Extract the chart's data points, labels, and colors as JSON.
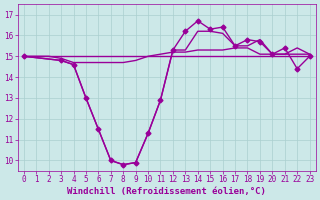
{
  "xlabel": "Windchill (Refroidissement éolien,°C)",
  "background_color": "#cce8e8",
  "grid_color": "#aacfcf",
  "line_color": "#990099",
  "xlim": [
    -0.5,
    23.5
  ],
  "ylim": [
    9.5,
    17.5
  ],
  "yticks": [
    10,
    11,
    12,
    13,
    14,
    15,
    16,
    17
  ],
  "xticks": [
    0,
    1,
    2,
    3,
    4,
    5,
    6,
    7,
    8,
    9,
    10,
    11,
    12,
    13,
    14,
    15,
    16,
    17,
    18,
    19,
    20,
    21,
    22,
    23
  ],
  "series": [
    {
      "x": [
        0,
        1,
        2,
        3,
        4,
        5,
        6,
        7,
        8,
        9,
        10,
        11,
        12,
        13,
        14,
        15,
        16,
        17,
        18,
        19,
        20,
        21,
        22,
        23
      ],
      "y": [
        15,
        15,
        15,
        15,
        15,
        15,
        15,
        15,
        15,
        15,
        15,
        15,
        15,
        15,
        15,
        15,
        15,
        15,
        15,
        15,
        15,
        15,
        15,
        15
      ],
      "marker": false,
      "lw": 1.0
    },
    {
      "x": [
        0,
        1,
        2,
        3,
        4,
        5,
        6,
        7,
        8,
        9,
        10,
        11,
        12,
        13,
        14,
        15,
        16,
        17,
        18,
        19,
        20,
        21,
        22,
        23
      ],
      "y": [
        15,
        15,
        15,
        14.9,
        14.7,
        14.7,
        14.7,
        14.7,
        14.7,
        14.8,
        15.0,
        15.1,
        15.2,
        15.2,
        15.3,
        15.3,
        15.3,
        15.4,
        15.4,
        15.1,
        15.1,
        15.1,
        15.1,
        15.1
      ],
      "marker": false,
      "lw": 1.0
    },
    {
      "x": [
        0,
        3,
        4,
        5,
        6,
        7,
        8,
        9,
        10,
        11,
        12,
        13,
        14,
        15,
        16,
        17,
        18,
        19,
        20,
        21,
        22,
        23
      ],
      "y": [
        15,
        14.8,
        14.6,
        13.0,
        11.5,
        10.0,
        9.8,
        9.9,
        11.3,
        12.9,
        15.3,
        15.3,
        16.2,
        16.2,
        16.1,
        15.5,
        15.5,
        15.8,
        15.1,
        15.1,
        15.4,
        15.1
      ],
      "marker": false,
      "lw": 1.0
    },
    {
      "x": [
        0,
        3,
        4,
        5,
        6,
        7,
        8,
        9,
        10,
        11,
        12,
        13,
        14,
        15,
        16,
        17,
        18,
        19,
        20,
        21,
        22,
        23
      ],
      "y": [
        15,
        14.8,
        14.6,
        13.0,
        11.5,
        10.0,
        9.8,
        9.9,
        11.3,
        12.9,
        15.3,
        16.2,
        16.7,
        16.3,
        16.4,
        15.5,
        15.8,
        15.7,
        15.1,
        15.4,
        14.4,
        15.0
      ],
      "marker": true,
      "lw": 1.0
    }
  ],
  "tick_fontsize": 5.5,
  "xlabel_fontsize": 6.5
}
